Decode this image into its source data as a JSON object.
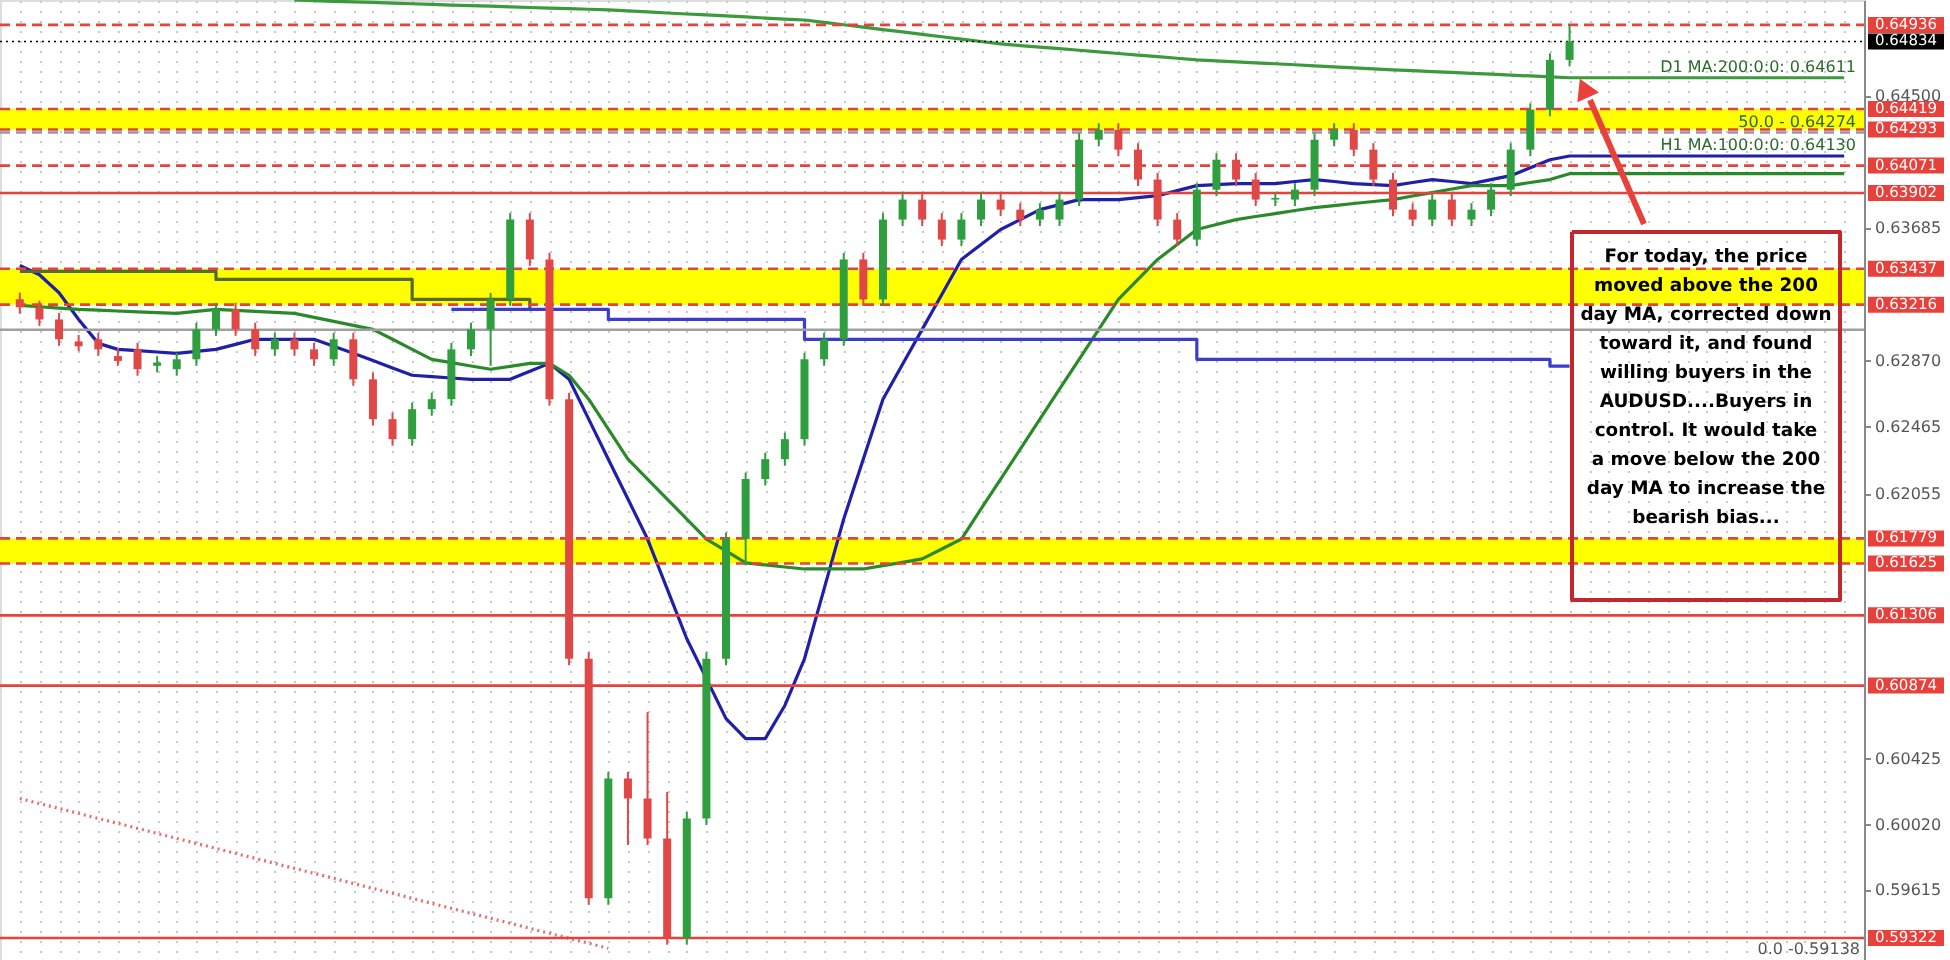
{
  "chart_data": {
    "type": "candlestick",
    "categories": [
      null,
      null,
      null,
      null,
      null,
      null,
      null,
      null,
      null,
      null,
      null,
      null,
      null,
      null,
      null,
      null,
      null,
      null,
      null,
      null,
      null,
      null,
      null,
      null,
      null,
      null,
      null,
      null,
      null,
      null,
      null,
      null,
      null,
      null,
      null,
      null,
      null,
      null,
      null,
      null,
      null,
      null,
      null,
      null,
      null,
      null,
      null,
      null,
      null,
      null,
      null,
      null,
      null,
      null,
      null,
      null,
      null,
      null,
      null,
      null,
      null,
      null,
      null,
      null,
      null,
      null,
      null,
      null,
      null,
      null,
      null,
      null,
      null,
      null,
      null,
      null,
      null,
      null,
      null,
      null,
      null,
      null,
      null,
      null,
      null,
      null,
      null,
      null,
      null,
      null,
      null,
      null,
      null,
      null
    ],
    "ohlc": [
      [
        0.6325,
        0.6329,
        0.6316,
        0.632
      ],
      [
        0.632,
        0.6324,
        0.63085,
        0.63125
      ],
      [
        0.63125,
        0.63165,
        0.62963,
        0.63003
      ],
      [
        0.6299,
        0.6303,
        0.6293,
        0.6296
      ],
      [
        0.63003,
        0.63043,
        0.62901,
        0.62941
      ],
      [
        0.629,
        0.6295,
        0.6284,
        0.6287
      ],
      [
        0.62941,
        0.62981,
        0.62779,
        0.62819
      ],
      [
        0.6284,
        0.629,
        0.628,
        0.6286
      ],
      [
        0.62819,
        0.6292,
        0.62779,
        0.6288
      ],
      [
        0.6288,
        0.63104,
        0.6284,
        0.63064
      ],
      [
        0.63064,
        0.63227,
        0.63024,
        0.63187
      ],
      [
        0.63187,
        0.63227,
        0.63024,
        0.63064
      ],
      [
        0.63064,
        0.63104,
        0.62901,
        0.62941
      ],
      [
        0.62941,
        0.63043,
        0.62901,
        0.63003
      ],
      [
        0.63003,
        0.63043,
        0.62901,
        0.62941
      ],
      [
        0.62941,
        0.62981,
        0.6284,
        0.6288
      ],
      [
        0.6288,
        0.63043,
        0.6284,
        0.63003
      ],
      [
        0.63003,
        0.63043,
        0.62717,
        0.62757
      ],
      [
        0.62757,
        0.62797,
        0.62472,
        0.62512
      ],
      [
        0.62512,
        0.62552,
        0.62349,
        0.62389
      ],
      [
        0.62389,
        0.62613,
        0.62349,
        0.62573
      ],
      [
        0.62573,
        0.62675,
        0.62533,
        0.62635
      ],
      [
        0.62635,
        0.62981,
        0.62595,
        0.62941
      ],
      [
        0.62941,
        0.63104,
        0.62901,
        0.63064
      ],
      [
        0.63064,
        0.63288,
        0.6284,
        0.63248
      ],
      [
        0.63248,
        0.63779,
        0.63208,
        0.63739
      ],
      [
        0.63739,
        0.63779,
        0.63454,
        0.63494
      ],
      [
        0.63494,
        0.63534,
        0.62595,
        0.62635
      ],
      [
        0.62635,
        0.62675,
        0.60999,
        0.61039
      ],
      [
        0.61039,
        0.61079,
        0.59526,
        0.59566
      ],
      [
        0.59566,
        0.60343,
        0.59526,
        0.60303
      ],
      [
        0.60303,
        0.60343,
        0.59894,
        0.6018
      ],
      [
        0.6018,
        0.60711,
        0.59894,
        0.59934
      ],
      [
        0.59934,
        0.6022,
        0.59281,
        0.59321
      ],
      [
        0.59321,
        0.60097,
        0.59281,
        0.60057
      ],
      [
        0.60057,
        0.61079,
        0.60017,
        0.61039
      ],
      [
        0.61039,
        0.61815,
        0.60999,
        0.61775
      ],
      [
        0.61775,
        0.62184,
        0.61613,
        0.62144
      ],
      [
        0.62144,
        0.62306,
        0.62104,
        0.62266
      ],
      [
        0.62266,
        0.62429,
        0.62226,
        0.62389
      ],
      [
        0.62389,
        0.6292,
        0.62349,
        0.6288
      ],
      [
        0.6288,
        0.63043,
        0.6284,
        0.63003
      ],
      [
        0.63003,
        0.63534,
        0.62963,
        0.63494
      ],
      [
        0.63494,
        0.63534,
        0.63208,
        0.63248
      ],
      [
        0.63248,
        0.63779,
        0.63208,
        0.63739
      ],
      [
        0.63739,
        0.63902,
        0.63699,
        0.63862
      ],
      [
        0.63862,
        0.63902,
        0.63699,
        0.63739
      ],
      [
        0.63739,
        0.63779,
        0.63576,
        0.63616
      ],
      [
        0.63616,
        0.63779,
        0.63576,
        0.63739
      ],
      [
        0.63739,
        0.63902,
        0.63699,
        0.63862
      ],
      [
        0.63862,
        0.63902,
        0.6376,
        0.638
      ],
      [
        0.638,
        0.6384,
        0.63699,
        0.63739
      ],
      [
        0.63739,
        0.6384,
        0.63699,
        0.638
      ],
      [
        0.63739,
        0.63902,
        0.63699,
        0.63862
      ],
      [
        0.63862,
        0.6427,
        0.63822,
        0.6423
      ],
      [
        0.6423,
        0.64331,
        0.6419,
        0.64291
      ],
      [
        0.64291,
        0.64331,
        0.64129,
        0.64169
      ],
      [
        0.64169,
        0.64209,
        0.63945,
        0.63985
      ],
      [
        0.63985,
        0.64025,
        0.63699,
        0.63739
      ],
      [
        0.63739,
        0.63779,
        0.63576,
        0.63616
      ],
      [
        0.63616,
        0.63963,
        0.63576,
        0.63923
      ],
      [
        0.63923,
        0.64147,
        0.63883,
        0.64107
      ],
      [
        0.64107,
        0.64147,
        0.63945,
        0.63985
      ],
      [
        0.63985,
        0.64025,
        0.63822,
        0.63862
      ],
      [
        0.63862,
        0.63902,
        0.63822,
        0.63872
      ],
      [
        0.63862,
        0.63963,
        0.63822,
        0.63923
      ],
      [
        0.63923,
        0.6427,
        0.63883,
        0.6423
      ],
      [
        0.6423,
        0.64331,
        0.6419,
        0.64291
      ],
      [
        0.64291,
        0.64331,
        0.64129,
        0.64169
      ],
      [
        0.64169,
        0.64209,
        0.63945,
        0.63985
      ],
      [
        0.63985,
        0.64025,
        0.6376,
        0.638
      ],
      [
        0.638,
        0.6384,
        0.63699,
        0.63739
      ],
      [
        0.63739,
        0.63902,
        0.63699,
        0.63862
      ],
      [
        0.63862,
        0.63902,
        0.63699,
        0.63739
      ],
      [
        0.63739,
        0.6384,
        0.63699,
        0.638
      ],
      [
        0.638,
        0.63963,
        0.6376,
        0.63923
      ],
      [
        0.63923,
        0.64209,
        0.63883,
        0.64169
      ],
      [
        0.64169,
        0.64454,
        0.64129,
        0.64414
      ],
      [
        0.64414,
        0.64761,
        0.64374,
        0.64721
      ],
      [
        0.64721,
        0.64936,
        0.64681,
        0.64834
      ],
      null,
      null,
      null,
      null,
      null,
      null,
      null,
      null,
      null,
      null,
      null,
      null,
      null,
      null
    ],
    "series": [
      {
        "type": "line",
        "color": "#1f1fa8",
        "values": [
          0.63457,
          0.634,
          0.63289,
          0.63125,
          0.62978,
          0.62941,
          0.62933,
          0.62925,
          0.62917,
          0.62929,
          0.62941,
          0.62972,
          0.63003,
          0.63003,
          0.63003,
          0.63003,
          0.6296,
          0.62917,
          0.62872,
          0.62827,
          0.62782,
          0.62774,
          0.62765,
          0.62757,
          0.62757,
          0.62757,
          0.62806,
          0.62855,
          0.62757,
          0.62512,
          0.62266,
          0.62021,
          0.61775,
          0.61469,
          0.61162,
          0.60917,
          0.60671,
          0.60548,
          0.60548,
          0.60752,
          0.61039,
          0.61469,
          0.61898,
          0.62267,
          0.62635,
          0.6285,
          0.63064,
          0.63279,
          0.63494,
          0.63586,
          0.63678,
          0.63739,
          0.638,
          0.63831,
          0.63862,
          0.63862,
          0.63862,
          0.63874,
          0.63886,
          0.63917,
          0.63948,
          0.63954,
          0.6396,
          0.6396,
          0.6396,
          0.63973,
          0.63985,
          0.63973,
          0.6396,
          0.63954,
          0.63948,
          0.63967,
          0.63985,
          0.63973,
          0.6396,
          0.63985,
          0.64009,
          0.64058,
          0.64107,
          0.6413,
          0.6413,
          0.6413,
          0.6413,
          0.6413,
          0.6413,
          0.6413,
          0.6413,
          0.6413,
          0.6413,
          0.6413,
          0.6413,
          0.6413,
          0.6413,
          0.6413
        ]
      },
      {
        "type": "line",
        "color": "#2a8a2a",
        "values": [
          0.63211,
          0.63203,
          0.63195,
          0.63187,
          0.63182,
          0.63177,
          0.63172,
          0.63167,
          0.63162,
          0.63175,
          0.63187,
          0.63181,
          0.63175,
          0.63168,
          0.63162,
          0.63138,
          0.63113,
          0.63089,
          0.63064,
          0.63003,
          0.62941,
          0.6288,
          0.6286,
          0.62839,
          0.62819,
          0.62837,
          0.62855,
          0.62855,
          0.62782,
          0.62635,
          0.62451,
          0.62266,
          0.62144,
          0.62021,
          0.61898,
          0.61775,
          0.61702,
          0.61628,
          0.61616,
          0.61603,
          0.61591,
          0.61591,
          0.61591,
          0.61591,
          0.61612,
          0.61632,
          0.61653,
          0.61714,
          0.61775,
          0.6196,
          0.62144,
          0.62328,
          0.62512,
          0.62696,
          0.6288,
          0.63064,
          0.63248,
          0.63371,
          0.63494,
          0.63586,
          0.63678,
          0.63709,
          0.63739,
          0.63758,
          0.63776,
          0.63795,
          0.63813,
          0.63825,
          0.63838,
          0.6385,
          0.63862,
          0.63884,
          0.63905,
          0.63927,
          0.63948,
          0.63948,
          0.63948,
          0.63967,
          0.63985,
          0.64021,
          0.64021,
          0.64021,
          0.64021,
          0.64021,
          0.64021,
          0.64021,
          0.64021,
          0.64021,
          0.64021,
          0.64021,
          0.64021,
          0.64021,
          0.64021,
          0.64021
        ]
      },
      {
        "type": "line",
        "color": "#3c9a3c",
        "values": [
          null,
          null,
          null,
          null,
          null,
          null,
          null,
          null,
          null,
          null,
          null,
          null,
          null,
          null,
          0.65089,
          0.65085,
          0.65081,
          0.65078,
          0.65074,
          0.6507,
          0.65066,
          0.65062,
          0.65058,
          0.65055,
          0.65051,
          0.65047,
          0.65043,
          0.65039,
          0.65036,
          0.65032,
          0.65028,
          0.65022,
          0.65016,
          0.65009,
          0.65003,
          0.64997,
          0.64991,
          0.64985,
          0.64978,
          0.64972,
          0.64966,
          0.64951,
          0.64937,
          0.64922,
          0.64907,
          0.64893,
          0.64878,
          0.64863,
          0.64848,
          0.64834,
          0.64819,
          0.64809,
          0.64799,
          0.6479,
          0.6478,
          0.6477,
          0.6476,
          0.6475,
          0.64741,
          0.64731,
          0.64721,
          0.64715,
          0.64709,
          0.64703,
          0.64697,
          0.64691,
          0.64684,
          0.64678,
          0.64672,
          0.64666,
          0.6466,
          0.64655,
          0.64649,
          0.64644,
          0.64638,
          0.64633,
          0.64627,
          0.64622,
          0.64616,
          0.64611,
          0.64611,
          0.64611,
          0.64611,
          0.64611,
          0.64611,
          0.64611,
          0.64611,
          0.64611,
          0.64611,
          0.64611,
          0.64611,
          0.64611,
          0.64611,
          0.64611
        ]
      },
      {
        "type": "step",
        "color": "#556b2f",
        "values": [
          0.6342,
          0.6342,
          0.6342,
          0.6342,
          0.6342,
          0.6342,
          0.6342,
          0.6342,
          0.6342,
          0.6342,
          0.63371,
          0.63371,
          0.63371,
          0.63371,
          0.63371,
          0.63371,
          0.63371,
          0.63371,
          0.63371,
          0.63371,
          0.63248,
          0.63248,
          0.63248,
          0.63248,
          0.63248,
          0.63248,
          0.63187,
          null,
          null,
          null,
          null,
          null,
          null,
          null,
          null,
          null,
          null,
          null,
          null,
          null,
          null,
          null,
          null,
          null,
          null,
          null,
          null,
          null,
          null,
          null,
          null,
          null,
          null,
          null,
          null,
          null,
          null,
          null,
          null,
          null,
          null,
          null,
          null,
          null,
          null,
          null,
          null,
          null,
          null,
          null,
          null,
          null,
          null,
          null,
          null,
          null,
          null,
          null,
          null,
          null,
          null,
          null,
          null,
          null,
          null,
          null,
          null,
          null,
          null,
          null,
          null,
          null,
          null,
          null
        ]
      },
      {
        "type": "step",
        "color": "#3b3bd0",
        "values": [
          null,
          null,
          null,
          null,
          null,
          null,
          null,
          null,
          null,
          null,
          null,
          null,
          null,
          null,
          null,
          null,
          null,
          null,
          null,
          null,
          null,
          null,
          0.63187,
          0.63187,
          0.63187,
          0.63187,
          0.63187,
          0.63187,
          0.63187,
          0.63187,
          0.63125,
          0.63125,
          0.63125,
          0.63125,
          0.63125,
          0.63125,
          0.63125,
          0.63125,
          0.63125,
          0.63125,
          0.63003,
          0.63003,
          0.63003,
          0.63003,
          0.63003,
          0.63003,
          0.63003,
          0.63003,
          0.63003,
          0.63003,
          0.63003,
          0.63003,
          0.63003,
          0.63003,
          0.63003,
          0.63003,
          0.63003,
          0.63003,
          0.63003,
          0.63003,
          0.6288,
          0.6288,
          0.6288,
          0.6288,
          0.6288,
          0.6288,
          0.6288,
          0.6288,
          0.6288,
          0.6288,
          0.6288,
          0.6288,
          0.6288,
          0.6288,
          0.6288,
          0.6288,
          0.6288,
          0.6288,
          0.62838,
          0.62838,
          null,
          null,
          null,
          null,
          null,
          null,
          null,
          null,
          null,
          null,
          null,
          null,
          null,
          null
        ]
      },
      {
        "type": "line",
        "color": "#e07070",
        "line_style": "dotted",
        "values": [
          0.6018,
          0.60149,
          0.60119,
          0.60088,
          0.60057,
          0.60027,
          0.59996,
          0.59965,
          0.59934,
          0.59904,
          0.59873,
          0.59842,
          0.59812,
          0.59781,
          0.5975,
          0.5972,
          0.59689,
          0.59658,
          0.59627,
          0.59597,
          0.59566,
          0.59535,
          0.59505,
          0.59474,
          0.59443,
          0.59413,
          0.59382,
          0.59351,
          0.5932,
          0.5929,
          0.59259,
          null,
          null,
          null,
          null,
          null,
          null,
          null,
          null,
          null,
          null,
          null,
          null,
          null,
          null,
          null,
          null,
          null,
          null,
          null,
          null,
          null,
          null,
          null,
          null,
          null,
          null,
          null,
          null,
          null,
          null,
          null,
          null,
          null,
          null,
          null,
          null,
          null,
          null,
          null,
          null,
          null,
          null,
          null,
          null,
          null,
          null,
          null,
          null,
          null,
          null,
          null,
          null,
          null,
          null,
          null,
          null,
          null,
          null,
          null,
          null,
          null,
          null,
          null
        ]
      }
    ],
    "ylim": [
      0.59187,
      0.65089
    ],
    "yticks": [
      {
        "value": 0.645,
        "label": "0.64500"
      },
      {
        "value": 0.63685,
        "label": "0.63685"
      },
      {
        "value": 0.6287,
        "label": "0.62870"
      },
      {
        "value": 0.62465,
        "label": "0.62465"
      },
      {
        "value": 0.62055,
        "label": "0.62055"
      },
      {
        "value": 0.60425,
        "label": "0.60425"
      },
      {
        "value": 0.6002,
        "label": "0.60020"
      },
      {
        "value": 0.59615,
        "label": "0.59615"
      }
    ],
    "grid": "x",
    "tick_labels": "y",
    "bands": [
      {
        "axis": "y",
        "from": 0.64293,
        "to": 0.64419,
        "color": "#ffff00"
      },
      {
        "axis": "y",
        "from": 0.63216,
        "to": 0.63437,
        "color": "#ffff00"
      },
      {
        "axis": "y",
        "from": 0.61625,
        "to": 0.61779,
        "color": "#ffff00"
      }
    ],
    "ref_lines": [
      {
        "axis": "y",
        "value": 0.64936,
        "label": "0.64936",
        "color": "#e8413c",
        "line_style": "dashed"
      },
      {
        "axis": "y",
        "value": 0.64834,
        "label": "0.64834",
        "color": "#000000",
        "line_style": "dotted"
      },
      {
        "axis": "y",
        "value": 0.64419,
        "label": "0.64419",
        "color": "#e8413c",
        "line_style": "dashed"
      },
      {
        "axis": "y",
        "value": 0.64293,
        "label": "0.64293",
        "color": "#e8413c",
        "line_style": "dashed"
      },
      {
        "axis": "y",
        "value": 0.64274,
        "color": "#999999",
        "line_style": "dashed"
      },
      {
        "axis": "y",
        "value": 0.64071,
        "label": "0.64071",
        "color": "#e8413c",
        "line_style": "dashed"
      },
      {
        "axis": "y",
        "value": 0.63902,
        "label": "0.63902",
        "color": "#e8413c",
        "line_style": "solid"
      },
      {
        "axis": "y",
        "value": 0.63437,
        "label": "0.63437",
        "color": "#e8413c",
        "line_style": "dashed"
      },
      {
        "axis": "y",
        "value": 0.63216,
        "label": "0.63216",
        "color": "#e8413c",
        "line_style": "dashed"
      },
      {
        "axis": "y",
        "value": 0.63062,
        "color": "#a0a0a0",
        "line_style": "solid"
      },
      {
        "axis": "y",
        "value": 0.61779,
        "label": "0.61779",
        "color": "#e8413c",
        "line_style": "dashed"
      },
      {
        "axis": "y",
        "value": 0.61625,
        "label": "0.61625",
        "color": "#e8413c",
        "line_style": "dashed"
      },
      {
        "axis": "y",
        "value": 0.61306,
        "label": "0.61306",
        "color": "#e8413c",
        "line_style": "solid"
      },
      {
        "axis": "y",
        "value": 0.60874,
        "label": "0.60874",
        "color": "#e8413c",
        "line_style": "solid"
      },
      {
        "axis": "y",
        "value": 0.59322,
        "label": "0.59322",
        "color": "#e8413c",
        "line_style": "solid"
      }
    ],
    "annotations": [
      "For today, the price moved above the 200 day MA, corrected down toward it, and found willing buyers in the AUDUSD....Buyers in control. It would take a move below the 200 day MA to increase the bearish bias...",
      {
        "text": "D1 MA:200:0:0: 0.64611",
        "y": 0.64611
      },
      {
        "text": "H1 MA:100:0:0: 0.64130",
        "y": 0.6413
      },
      {
        "text": "50.0 - 0.64274",
        "y": 0.64274
      },
      "0.0 -0.59138"
    ]
  }
}
